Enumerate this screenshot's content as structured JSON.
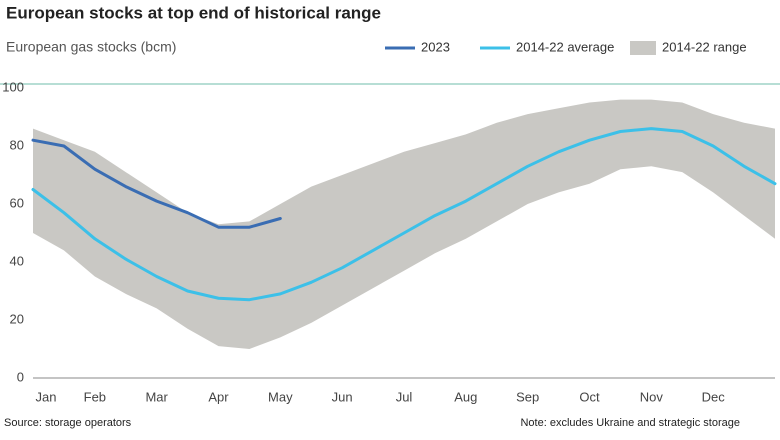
{
  "chart_data": {
    "type": "line",
    "title": "European stocks at top end of historical range",
    "subtitle": "European gas stocks (bcm)",
    "source": "Source: storage operators",
    "note": "Note: excludes Ukraine and strategic storage",
    "categories": [
      "Jan",
      null,
      "Feb",
      null,
      "Mar",
      null,
      "Apr",
      null,
      "May",
      null,
      "Jun",
      null,
      "Jul",
      null,
      "Aug",
      null,
      "Sep",
      null,
      "Oct",
      null,
      "Nov",
      null,
      "Dec",
      null,
      null
    ],
    "range": {
      "name": "2014-22 range",
      "color": "#c9c8c4",
      "high": [
        86,
        82,
        78,
        71,
        64,
        57,
        53,
        54,
        60,
        66,
        70,
        74,
        78,
        81,
        84,
        88,
        91,
        93,
        95,
        96,
        96,
        95,
        91,
        88,
        86
      ],
      "low": [
        50,
        44,
        35,
        29,
        24,
        17,
        11,
        10,
        14,
        19,
        25,
        31,
        37,
        43,
        48,
        54,
        60,
        64,
        67,
        72,
        73,
        71,
        64,
        56,
        48
      ]
    },
    "series": [
      {
        "name": "2023",
        "color": "#3a6db3",
        "values": [
          82,
          80,
          72,
          66,
          61,
          57,
          52,
          52,
          55,
          null,
          null,
          null,
          null,
          null,
          null,
          null,
          null,
          null,
          null,
          null,
          null,
          null,
          null,
          null,
          null
        ]
      },
      {
        "name": "2014-22 average",
        "color": "#3cc0e8",
        "values": [
          65,
          57,
          48,
          41,
          35,
          30,
          27.5,
          27,
          29,
          33,
          38,
          44,
          50,
          56,
          61,
          67,
          73,
          78,
          82,
          85,
          86,
          85,
          80,
          73,
          67
        ]
      }
    ],
    "ylim": [
      0,
      100
    ],
    "yticks": [
      0,
      20,
      40,
      60,
      80,
      100
    ]
  }
}
